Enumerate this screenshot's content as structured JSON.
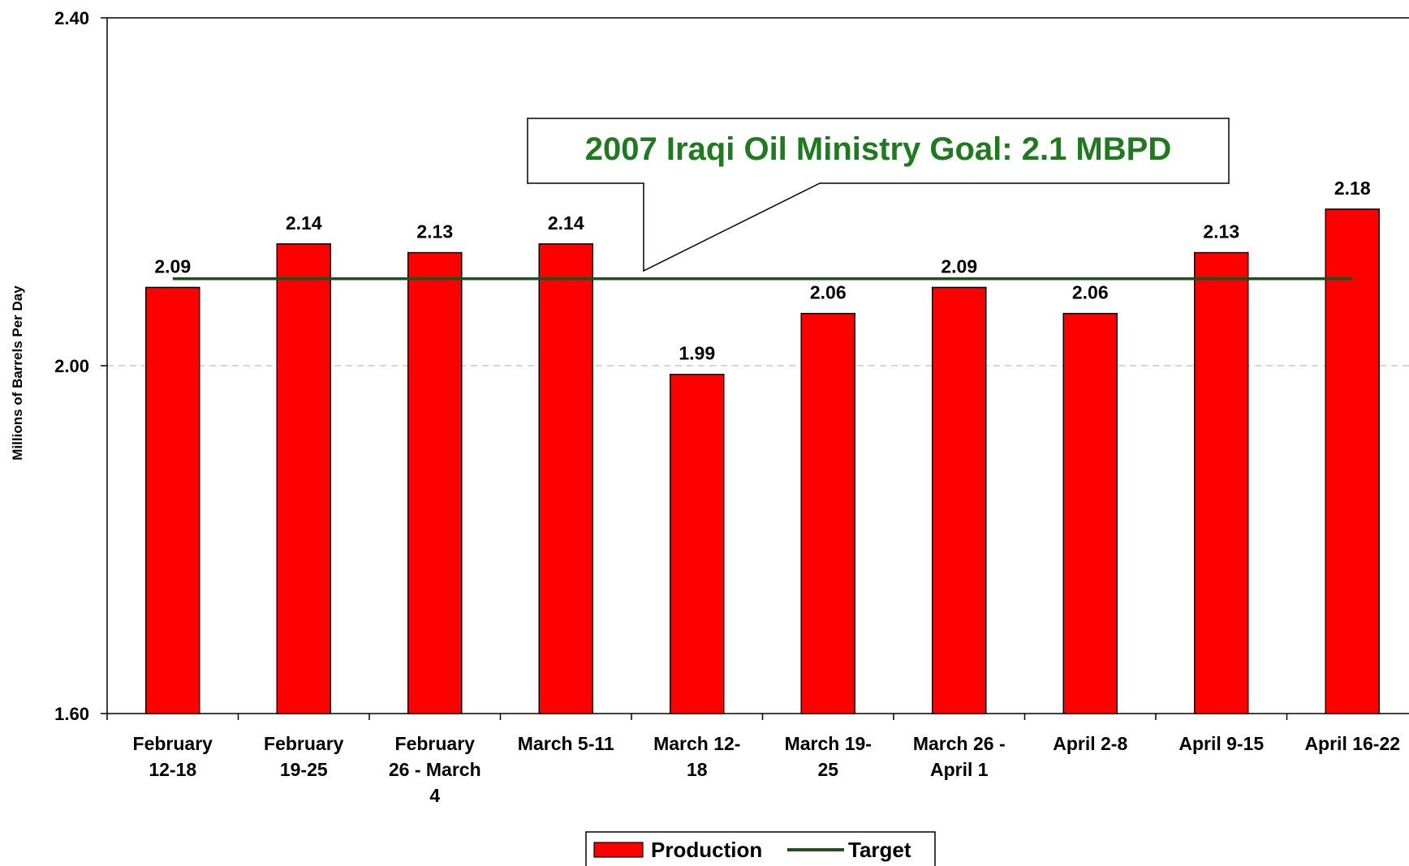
{
  "chart_data": {
    "type": "bar",
    "categories": [
      [
        "February",
        "12-18"
      ],
      [
        "February",
        "19-25"
      ],
      [
        "February",
        "26 - March",
        "4"
      ],
      [
        "March 5-11"
      ],
      [
        "March 12-",
        "18"
      ],
      [
        "March 19-",
        "25"
      ],
      [
        "March 26 -",
        "April 1"
      ],
      [
        "April 2-8"
      ],
      [
        "April 9-15"
      ],
      [
        "April 16-22"
      ]
    ],
    "series": [
      {
        "name": "Production",
        "type": "bar",
        "color": "#ff0000",
        "values": [
          2.09,
          2.14,
          2.13,
          2.14,
          1.99,
          2.06,
          2.09,
          2.06,
          2.13,
          2.18
        ],
        "labels": [
          "2.09",
          "2.14",
          "2.13",
          "2.14",
          "1.99",
          "2.06",
          "2.09",
          "2.06",
          "2.13",
          "2.18"
        ]
      },
      {
        "name": "Target",
        "type": "line",
        "color": "#1f4f1f",
        "value": 2.1
      }
    ],
    "yticks": [
      "1.60",
      "2.00",
      "2.40"
    ],
    "ylim": [
      1.6,
      2.4
    ],
    "ylabel": "Millions of Barrels Per Day",
    "xlabel": "",
    "grid": "dashed horizontal at 2.00",
    "legend": "bottom-center",
    "annotation": {
      "text": "2007 Iraqi Oil Ministry Goal:  2.1 MBPD",
      "color": "#1f7a1f"
    }
  }
}
